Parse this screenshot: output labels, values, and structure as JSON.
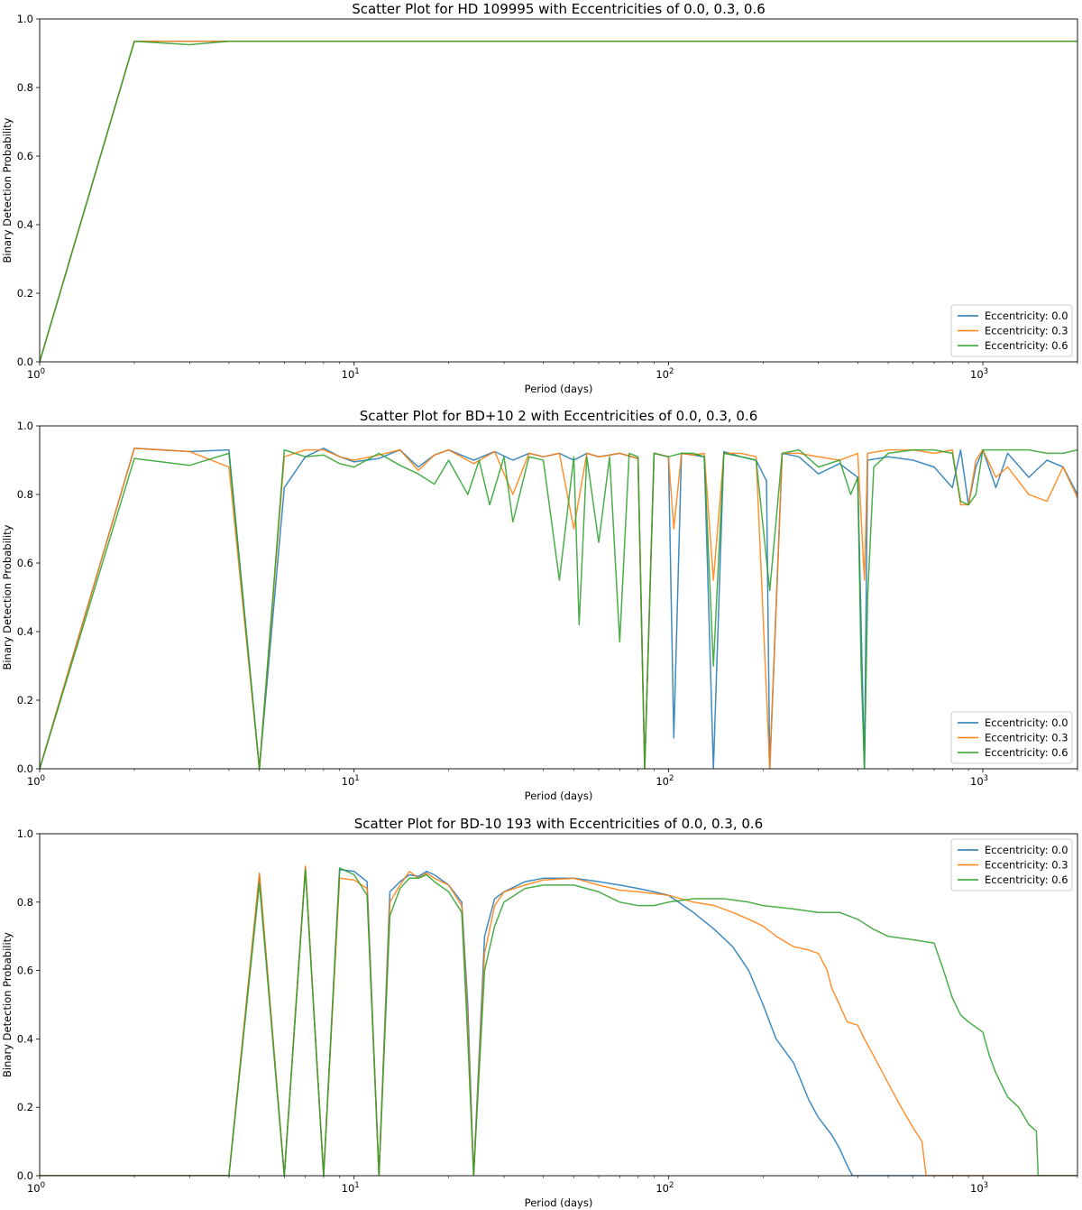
{
  "chart_data": [
    {
      "type": "line",
      "title": "Scatter Plot for HD 109995 with Eccentricities of 0.0, 0.3, 0.6",
      "xlabel": "Period (days)",
      "ylabel": "Binary Detection Probability",
      "xscale": "log",
      "xlim": [
        1,
        2000
      ],
      "ylim": [
        0,
        1.0
      ],
      "yticks": [
        "0.0",
        "0.2",
        "0.4",
        "0.6",
        "0.8",
        "1.0"
      ],
      "xticks": [
        "10^0",
        "10^1",
        "10^2",
        "10^3"
      ],
      "legend_position": "lower-right",
      "series": [
        {
          "name": "Eccentricity: 0.0",
          "color": "#1f77b4",
          "x": [
            1,
            2,
            3,
            4,
            6,
            10,
            30,
            100,
            300,
            1000,
            2000
          ],
          "y": [
            0,
            0.935,
            0.935,
            0.935,
            0.935,
            0.935,
            0.935,
            0.935,
            0.935,
            0.935,
            0.935
          ]
        },
        {
          "name": "Eccentricity: 0.3",
          "color": "#ff7f0e",
          "x": [
            1,
            2,
            3,
            4,
            6,
            10,
            30,
            100,
            300,
            1000,
            2000
          ],
          "y": [
            0,
            0.935,
            0.935,
            0.935,
            0.935,
            0.935,
            0.935,
            0.935,
            0.935,
            0.935,
            0.935
          ]
        },
        {
          "name": "Eccentricity: 0.6",
          "color": "#2ca02c",
          "x": [
            1,
            2,
            3,
            4,
            6,
            10,
            30,
            100,
            300,
            1000,
            2000
          ],
          "y": [
            0,
            0.935,
            0.925,
            0.935,
            0.935,
            0.935,
            0.935,
            0.935,
            0.935,
            0.935,
            0.935
          ]
        }
      ]
    },
    {
      "type": "line",
      "title": "Scatter Plot for BD+10 2 with Eccentricities of 0.0, 0.3, 0.6",
      "xlabel": "Period (days)",
      "ylabel": "Binary Detection Probability",
      "xscale": "log",
      "xlim": [
        1,
        2000
      ],
      "ylim": [
        0,
        1.0
      ],
      "yticks": [
        "0.0",
        "0.2",
        "0.4",
        "0.6",
        "0.8",
        "1.0"
      ],
      "xticks": [
        "10^0",
        "10^1",
        "10^2",
        "10^3"
      ],
      "legend_position": "lower-right",
      "series": [
        {
          "name": "Eccentricity: 0.0",
          "color": "#1f77b4",
          "x": [
            1,
            2,
            3,
            4,
            5,
            6,
            7,
            8,
            9,
            10,
            12,
            14,
            16,
            18,
            20,
            24,
            28,
            32,
            36,
            40,
            45,
            50,
            55,
            60,
            70,
            80,
            84,
            90,
            100,
            104,
            110,
            120,
            130,
            139,
            150,
            170,
            190,
            205,
            210,
            230,
            260,
            300,
            350,
            400,
            420,
            430,
            500,
            600,
            700,
            800,
            850,
            900,
            950,
            1000,
            1100,
            1200,
            1400,
            1600,
            1800,
            2000
          ],
          "y": [
            0,
            0.935,
            0.925,
            0.93,
            0,
            0.82,
            0.91,
            0.935,
            0.91,
            0.895,
            0.905,
            0.93,
            0.88,
            0.915,
            0.93,
            0.9,
            0.925,
            0.9,
            0.92,
            0.91,
            0.92,
            0.9,
            0.92,
            0.91,
            0.92,
            0.905,
            0,
            0.92,
            0.91,
            0.09,
            0.92,
            0.915,
            0.91,
            0,
            0.925,
            0.91,
            0.9,
            0.84,
            0,
            0.92,
            0.91,
            0.86,
            0.89,
            0.85,
            0,
            0.9,
            0.91,
            0.9,
            0.88,
            0.82,
            0.93,
            0.77,
            0.88,
            0.93,
            0.82,
            0.92,
            0.85,
            0.9,
            0.88,
            0.8
          ]
        },
        {
          "name": "Eccentricity: 0.3",
          "color": "#ff7f0e",
          "x": [
            1,
            2,
            3,
            4,
            5,
            6,
            7,
            8,
            9,
            10,
            12,
            14,
            16,
            18,
            20,
            24,
            28,
            32,
            36,
            40,
            45,
            50,
            55,
            60,
            70,
            80,
            84,
            90,
            100,
            104,
            110,
            120,
            130,
            139,
            150,
            170,
            190,
            210,
            230,
            260,
            300,
            350,
            400,
            420,
            430,
            500,
            600,
            700,
            800,
            850,
            900,
            950,
            1000,
            1100,
            1200,
            1400,
            1600,
            1800,
            2000
          ],
          "y": [
            0,
            0.935,
            0.925,
            0.88,
            0,
            0.91,
            0.93,
            0.93,
            0.91,
            0.9,
            0.915,
            0.93,
            0.87,
            0.915,
            0.93,
            0.89,
            0.925,
            0.8,
            0.92,
            0.91,
            0.92,
            0.7,
            0.92,
            0.91,
            0.92,
            0.905,
            0,
            0.92,
            0.91,
            0.7,
            0.92,
            0.915,
            0.92,
            0.55,
            0.92,
            0.92,
            0.91,
            0,
            0.92,
            0.92,
            0.91,
            0.9,
            0.92,
            0.55,
            0.92,
            0.93,
            0.93,
            0.92,
            0.93,
            0.77,
            0.77,
            0.9,
            0.93,
            0.85,
            0.88,
            0.8,
            0.78,
            0.88,
            0.79
          ]
        },
        {
          "name": "Eccentricity: 0.6",
          "color": "#2ca02c",
          "x": [
            1,
            2,
            3,
            4,
            5,
            6,
            7,
            8,
            9,
            10,
            12,
            14,
            16,
            18,
            20,
            23,
            25,
            27,
            30,
            32,
            36,
            40,
            45,
            50,
            52,
            55,
            60,
            65,
            70,
            75,
            80,
            84,
            90,
            100,
            110,
            120,
            130,
            139,
            150,
            170,
            190,
            210,
            230,
            260,
            300,
            350,
            380,
            400,
            410,
            420,
            430,
            450,
            500,
            600,
            700,
            800,
            850,
            900,
            950,
            1000,
            1200,
            1400,
            1600,
            1800,
            2000
          ],
          "y": [
            0,
            0.905,
            0.885,
            0.92,
            0,
            0.93,
            0.91,
            0.915,
            0.89,
            0.88,
            0.92,
            0.885,
            0.86,
            0.83,
            0.9,
            0.8,
            0.9,
            0.77,
            0.91,
            0.72,
            0.91,
            0.9,
            0.55,
            0.91,
            0.42,
            0.91,
            0.66,
            0.91,
            0.37,
            0.92,
            0.91,
            0,
            0.92,
            0.91,
            0.92,
            0.92,
            0.91,
            0.3,
            0.92,
            0.91,
            0.9,
            0.52,
            0.92,
            0.93,
            0.88,
            0.9,
            0.8,
            0.85,
            0.3,
            0,
            0.5,
            0.88,
            0.92,
            0.93,
            0.93,
            0.92,
            0.78,
            0.77,
            0.8,
            0.93,
            0.93,
            0.93,
            0.92,
            0.92,
            0.93
          ]
        }
      ]
    },
    {
      "type": "line",
      "title": "Scatter Plot for BD-10 193 with Eccentricities of 0.0, 0.3, 0.6",
      "xlabel": "Period (days)",
      "ylabel": "Binary Detection Probability",
      "xscale": "log",
      "xlim": [
        1,
        2000
      ],
      "ylim": [
        0,
        1.0
      ],
      "yticks": [
        "0.0",
        "0.2",
        "0.4",
        "0.6",
        "0.8",
        "1.0"
      ],
      "xticks": [
        "10^0",
        "10^1",
        "10^2",
        "10^3"
      ],
      "legend_position": "upper-right",
      "series": [
        {
          "name": "Eccentricity: 0.0",
          "color": "#1f77b4",
          "x": [
            1,
            2,
            3,
            4,
            5,
            6,
            7,
            8,
            9,
            10,
            11,
            12,
            13,
            14,
            15,
            16,
            17,
            18,
            20,
            22,
            23,
            24,
            26,
            28,
            30,
            35,
            40,
            50,
            60,
            70,
            80,
            90,
            100,
            120,
            140,
            160,
            180,
            200,
            220,
            250,
            280,
            300,
            330,
            350,
            370,
            385,
            390,
            2000
          ],
          "y": [
            0,
            0,
            0,
            0,
            0.88,
            0,
            0.9,
            0,
            0.895,
            0.89,
            0.86,
            0,
            0.83,
            0.86,
            0.88,
            0.875,
            0.89,
            0.88,
            0.85,
            0.8,
            0.5,
            0,
            0.7,
            0.81,
            0.83,
            0.86,
            0.87,
            0.87,
            0.86,
            0.85,
            0.84,
            0.83,
            0.82,
            0.77,
            0.72,
            0.67,
            0.6,
            0.5,
            0.4,
            0.33,
            0.22,
            0.17,
            0.12,
            0.08,
            0.03,
            0,
            0,
            0
          ]
        },
        {
          "name": "Eccentricity: 0.3",
          "color": "#ff7f0e",
          "x": [
            1,
            2,
            3,
            4,
            5,
            6,
            7,
            8,
            9,
            10,
            11,
            12,
            13,
            14,
            15,
            16,
            17,
            18,
            20,
            22,
            23,
            24,
            26,
            28,
            30,
            35,
            40,
            50,
            60,
            70,
            80,
            90,
            100,
            120,
            140,
            160,
            180,
            200,
            220,
            250,
            280,
            300,
            320,
            330,
            350,
            370,
            400,
            420,
            450,
            500,
            550,
            600,
            640,
            660,
            2000
          ],
          "y": [
            0,
            0,
            0,
            0,
            0.885,
            0,
            0.905,
            0,
            0.87,
            0.865,
            0.84,
            0,
            0.8,
            0.85,
            0.89,
            0.87,
            0.885,
            0.87,
            0.85,
            0.79,
            0.45,
            0,
            0.65,
            0.79,
            0.83,
            0.85,
            0.865,
            0.87,
            0.85,
            0.835,
            0.83,
            0.825,
            0.82,
            0.8,
            0.79,
            0.77,
            0.75,
            0.73,
            0.7,
            0.67,
            0.66,
            0.65,
            0.6,
            0.55,
            0.5,
            0.45,
            0.44,
            0.4,
            0.35,
            0.27,
            0.2,
            0.14,
            0.1,
            0,
            0
          ]
        },
        {
          "name": "Eccentricity: 0.6",
          "color": "#2ca02c",
          "x": [
            1,
            2,
            3,
            4,
            5,
            6,
            7,
            8,
            9,
            10,
            11,
            12,
            13,
            14,
            15,
            16,
            17,
            18,
            20,
            22,
            23,
            24,
            26,
            28,
            30,
            35,
            40,
            50,
            60,
            70,
            80,
            90,
            100,
            120,
            150,
            180,
            200,
            250,
            300,
            350,
            400,
            450,
            500,
            600,
            700,
            750,
            800,
            850,
            900,
            1000,
            1050,
            1100,
            1200,
            1300,
            1400,
            1480,
            1500,
            2000
          ],
          "y": [
            0,
            0,
            0,
            0,
            0.855,
            0,
            0.895,
            0,
            0.9,
            0.88,
            0.82,
            0,
            0.76,
            0.84,
            0.87,
            0.87,
            0.88,
            0.86,
            0.83,
            0.77,
            0.4,
            0,
            0.6,
            0.73,
            0.8,
            0.84,
            0.85,
            0.85,
            0.83,
            0.8,
            0.79,
            0.79,
            0.8,
            0.81,
            0.81,
            0.8,
            0.79,
            0.78,
            0.77,
            0.77,
            0.75,
            0.72,
            0.7,
            0.69,
            0.68,
            0.6,
            0.52,
            0.47,
            0.45,
            0.42,
            0.35,
            0.3,
            0.23,
            0.2,
            0.15,
            0.13,
            0,
            0
          ]
        }
      ]
    }
  ]
}
